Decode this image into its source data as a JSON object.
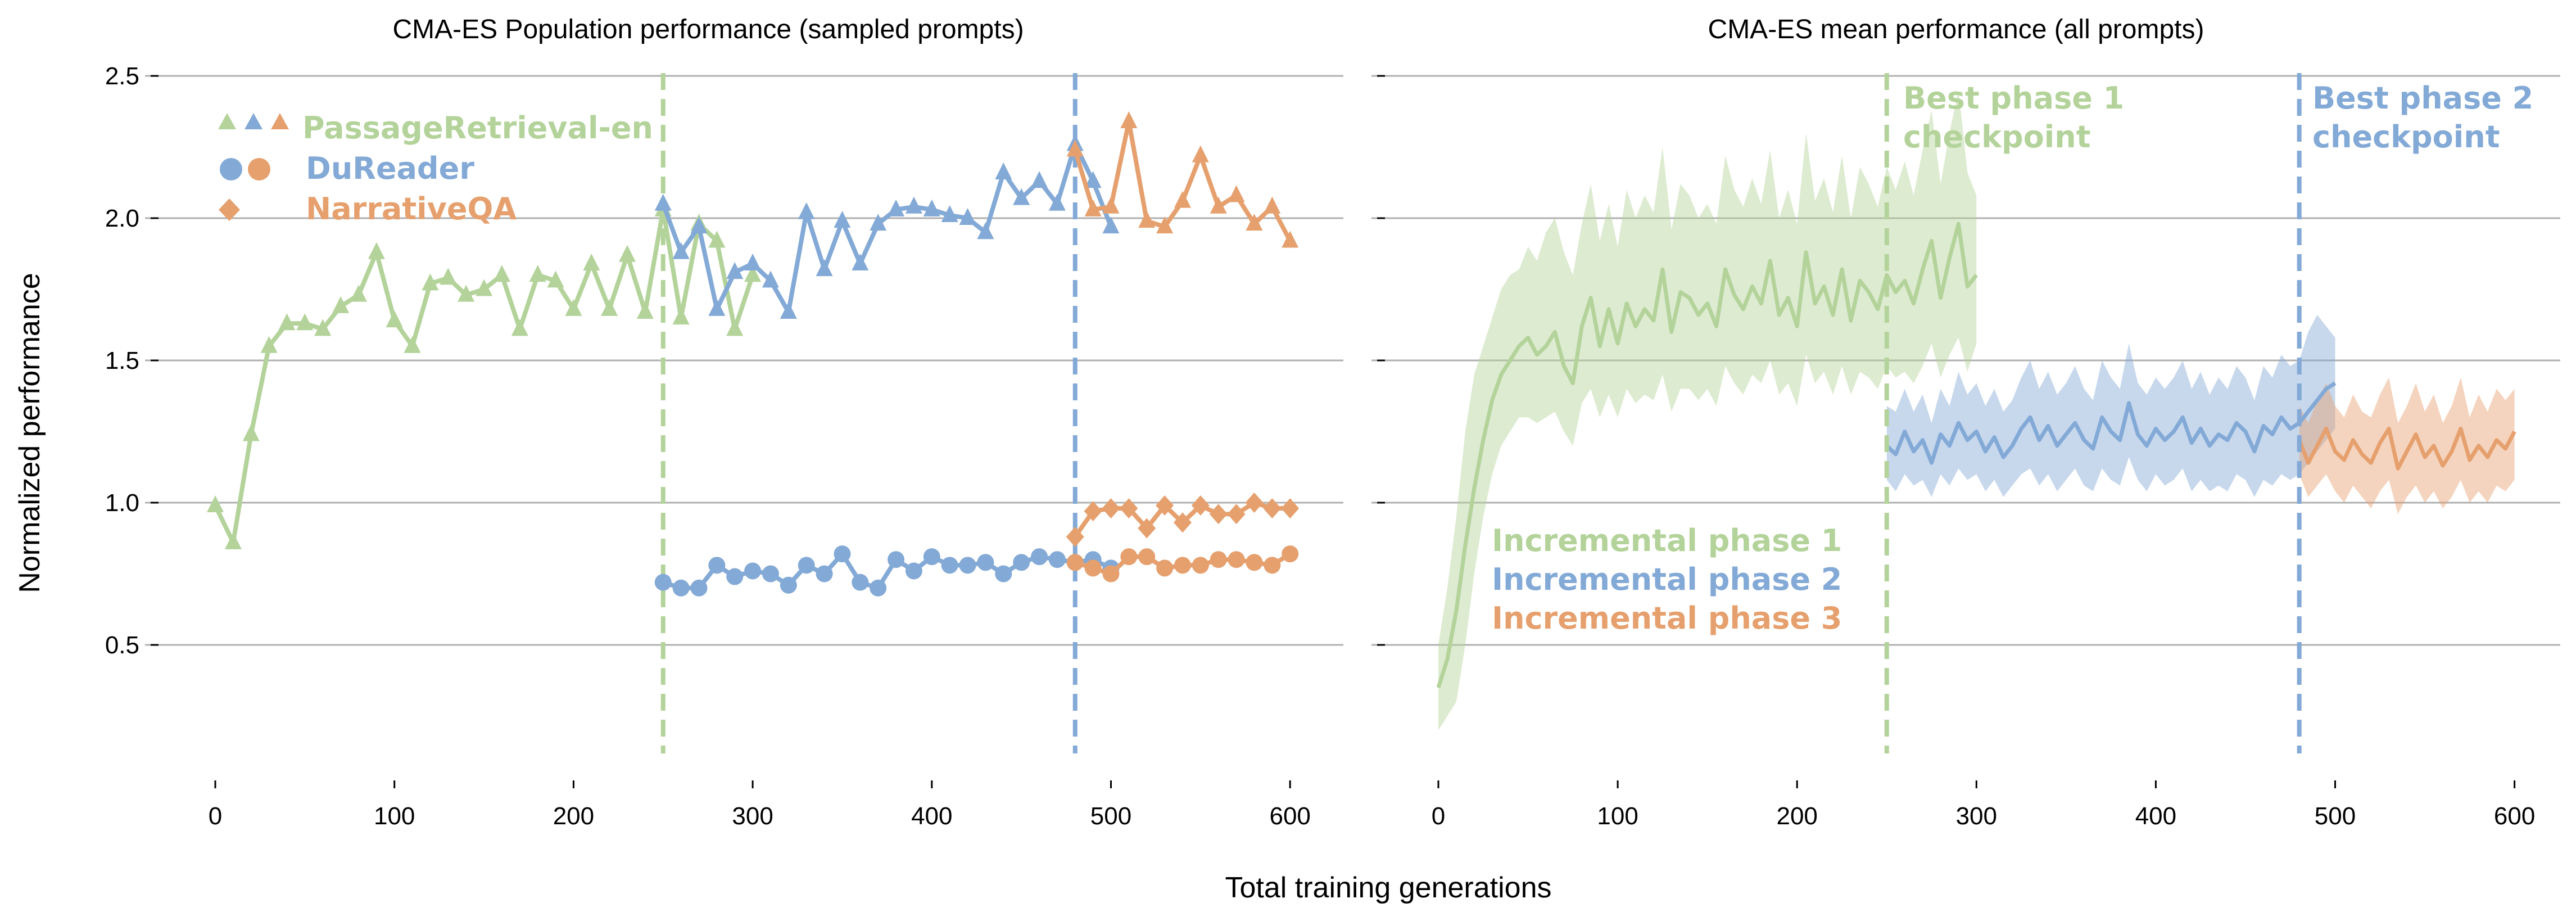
{
  "figure": {
    "xlabel": "Total training generations",
    "ylabel": "Normalized performance"
  },
  "colors": {
    "green": "#b3d39a",
    "blue": "#83a9d6",
    "orange": "#e6a06e",
    "grid": "#b0b0b0"
  },
  "chart_data": [
    {
      "type": "line",
      "title": "CMA-ES Population performance (sampled prompts)",
      "xlabel": "Total training generations",
      "ylabel": "Normalized performance",
      "xlim": [
        -10,
        630
      ],
      "ylim": [
        0.08,
        2.55
      ],
      "xticks": [
        0,
        100,
        200,
        300,
        400,
        500,
        600
      ],
      "yticks": [
        0.5,
        1.0,
        1.5,
        2.0,
        2.5
      ],
      "ytick_labels": [
        "0.5",
        "1.0",
        "1.5",
        "2.0",
        "2.5"
      ],
      "grid": "horizontal",
      "legend_position": "top-left",
      "legend": [
        {
          "label": "PassageRetrieval-en",
          "marker": "triangle",
          "colors": [
            "green",
            "blue",
            "orange"
          ]
        },
        {
          "label": "DuReader",
          "marker": "circle",
          "colors": [
            "blue",
            "orange"
          ]
        },
        {
          "label": "NarrativeQA",
          "marker": "diamond",
          "colors": [
            "orange"
          ]
        }
      ],
      "vlines": [
        {
          "x": 250,
          "color": "green"
        },
        {
          "x": 480,
          "color": "blue"
        }
      ],
      "series": [
        {
          "task": "PassageRetrieval-en",
          "phase": 1,
          "color": "green",
          "marker": "triangle",
          "x": [
            0,
            10,
            20,
            30,
            40,
            50,
            60,
            70,
            80,
            90,
            100,
            110,
            120,
            130,
            140,
            150,
            160,
            170,
            180,
            190,
            200,
            210,
            220,
            230,
            240,
            250,
            260,
            270,
            280,
            290,
            300
          ],
          "y": [
            0.99,
            0.86,
            1.24,
            1.55,
            1.63,
            1.63,
            1.61,
            1.69,
            1.73,
            1.88,
            1.64,
            1.55,
            1.77,
            1.79,
            1.73,
            1.75,
            1.8,
            1.61,
            1.8,
            1.78,
            1.68,
            1.84,
            1.68,
            1.87,
            1.67,
            2.03,
            1.65,
            1.98,
            1.92,
            1.61,
            1.8
          ]
        },
        {
          "task": "PassageRetrieval-en",
          "phase": 2,
          "color": "blue",
          "marker": "triangle",
          "x": [
            250,
            260,
            270,
            280,
            290,
            300,
            310,
            320,
            330,
            340,
            350,
            360,
            370,
            380,
            390,
            400,
            410,
            420,
            430,
            440,
            450,
            460,
            470,
            480,
            490,
            500
          ],
          "y": [
            2.05,
            1.88,
            1.97,
            1.68,
            1.81,
            1.84,
            1.78,
            1.67,
            2.02,
            1.82,
            1.99,
            1.84,
            1.98,
            2.03,
            2.04,
            2.03,
            2.01,
            2.0,
            1.95,
            2.16,
            2.07,
            2.13,
            2.05,
            2.26,
            2.13,
            1.97
          ]
        },
        {
          "task": "PassageRetrieval-en",
          "phase": 3,
          "color": "orange",
          "marker": "triangle",
          "x": [
            480,
            490,
            500,
            510,
            520,
            530,
            540,
            550,
            560,
            570,
            580,
            590,
            600
          ],
          "y": [
            2.24,
            2.03,
            2.04,
            2.34,
            1.99,
            1.97,
            2.06,
            2.22,
            2.04,
            2.08,
            1.98,
            2.04,
            1.92
          ]
        },
        {
          "task": "DuReader",
          "phase": 2,
          "color": "blue",
          "marker": "circle",
          "x": [
            250,
            260,
            270,
            280,
            290,
            300,
            310,
            320,
            330,
            340,
            350,
            360,
            370,
            380,
            390,
            400,
            410,
            420,
            430,
            440,
            450,
            460,
            470,
            480,
            490,
            500
          ],
          "y": [
            0.72,
            0.7,
            0.7,
            0.78,
            0.74,
            0.76,
            0.75,
            0.71,
            0.78,
            0.75,
            0.82,
            0.72,
            0.7,
            0.8,
            0.76,
            0.81,
            0.78,
            0.78,
            0.79,
            0.75,
            0.79,
            0.81,
            0.8,
            0.79,
            0.8,
            0.77
          ]
        },
        {
          "task": "DuReader",
          "phase": 3,
          "color": "orange",
          "marker": "circle",
          "x": [
            480,
            490,
            500,
            510,
            520,
            530,
            540,
            550,
            560,
            570,
            580,
            590,
            600
          ],
          "y": [
            0.79,
            0.77,
            0.75,
            0.81,
            0.81,
            0.77,
            0.78,
            0.78,
            0.8,
            0.8,
            0.79,
            0.78,
            0.82
          ]
        },
        {
          "task": "NarrativeQA",
          "phase": 3,
          "color": "orange",
          "marker": "diamond",
          "x": [
            480,
            490,
            500,
            510,
            520,
            530,
            540,
            550,
            560,
            570,
            580,
            590,
            600
          ],
          "y": [
            0.88,
            0.97,
            0.98,
            0.98,
            0.91,
            0.99,
            0.93,
            0.99,
            0.96,
            0.96,
            1.0,
            0.98,
            0.98
          ]
        }
      ]
    },
    {
      "type": "line",
      "title": "CMA-ES mean performance (all prompts)",
      "xlabel": "Total training generations",
      "xlim": [
        -10,
        630
      ],
      "ylim": [
        0.08,
        2.55
      ],
      "xticks": [
        0,
        100,
        200,
        300,
        400,
        500,
        600
      ],
      "grid": "horizontal",
      "shaded_band": true,
      "vlines": [
        {
          "x": 250,
          "color": "green",
          "label": "Best phase 1 checkpoint"
        },
        {
          "x": 480,
          "color": "blue",
          "label": "Best phase 2 checkpoint"
        }
      ],
      "annotations": [
        {
          "text": "Best phase 1",
          "color": "green"
        },
        {
          "text": "checkpoint",
          "color": "green"
        },
        {
          "text": "Best phase 2",
          "color": "blue"
        },
        {
          "text": "checkpoint",
          "color": "blue"
        }
      ],
      "series_labels": [
        {
          "text": "Incremental phase 1",
          "color": "green"
        },
        {
          "text": "Incremental phase 2",
          "color": "blue"
        },
        {
          "text": "Incremental phase 3",
          "color": "orange"
        }
      ],
      "series": [
        {
          "name": "Incremental phase 1",
          "color": "green",
          "x": [
            0,
            5,
            10,
            15,
            20,
            25,
            30,
            35,
            40,
            45,
            50,
            55,
            60,
            65,
            70,
            75,
            80,
            85,
            90,
            95,
            100,
            105,
            110,
            115,
            120,
            125,
            130,
            135,
            140,
            145,
            150,
            155,
            160,
            165,
            170,
            175,
            180,
            185,
            190,
            195,
            200,
            205,
            210,
            215,
            220,
            225,
            230,
            235,
            240,
            245,
            250,
            255,
            260,
            265,
            270,
            275,
            280,
            285,
            290,
            295,
            300
          ],
          "y": [
            0.35,
            0.45,
            0.62,
            0.85,
            1.05,
            1.22,
            1.36,
            1.45,
            1.5,
            1.55,
            1.58,
            1.52,
            1.55,
            1.6,
            1.48,
            1.42,
            1.62,
            1.72,
            1.55,
            1.68,
            1.56,
            1.7,
            1.62,
            1.68,
            1.64,
            1.82,
            1.6,
            1.74,
            1.72,
            1.66,
            1.7,
            1.62,
            1.82,
            1.73,
            1.68,
            1.76,
            1.7,
            1.85,
            1.66,
            1.72,
            1.62,
            1.88,
            1.7,
            1.76,
            1.66,
            1.82,
            1.64,
            1.78,
            1.74,
            1.68,
            1.8,
            1.74,
            1.78,
            1.7,
            1.82,
            1.92,
            1.72,
            1.86,
            1.98,
            1.76,
            1.8
          ],
          "lower": [
            0.2,
            0.25,
            0.3,
            0.5,
            0.75,
            0.95,
            1.1,
            1.2,
            1.25,
            1.3,
            1.3,
            1.28,
            1.3,
            1.32,
            1.25,
            1.2,
            1.35,
            1.4,
            1.3,
            1.38,
            1.3,
            1.4,
            1.35,
            1.38,
            1.36,
            1.45,
            1.32,
            1.4,
            1.4,
            1.36,
            1.4,
            1.34,
            1.48,
            1.42,
            1.38,
            1.45,
            1.42,
            1.5,
            1.38,
            1.42,
            1.34,
            1.52,
            1.42,
            1.46,
            1.38,
            1.48,
            1.38,
            1.46,
            1.44,
            1.4,
            1.48,
            1.44,
            1.46,
            1.42,
            1.48,
            1.56,
            1.44,
            1.52,
            1.58,
            1.46,
            1.56
          ],
          "upper": [
            0.5,
            0.7,
            0.95,
            1.25,
            1.45,
            1.55,
            1.65,
            1.75,
            1.8,
            1.82,
            1.9,
            1.85,
            1.95,
            2.0,
            1.88,
            1.8,
            1.98,
            2.12,
            1.92,
            2.05,
            1.9,
            2.1,
            2.0,
            2.08,
            2.02,
            2.25,
            1.96,
            2.12,
            2.08,
            2.0,
            2.05,
            1.98,
            2.22,
            2.1,
            2.04,
            2.14,
            2.05,
            2.24,
            2.0,
            2.1,
            1.98,
            2.3,
            2.06,
            2.14,
            2.02,
            2.22,
            2.0,
            2.18,
            2.12,
            2.04,
            2.18,
            2.1,
            2.2,
            2.08,
            2.24,
            2.38,
            2.12,
            2.3,
            2.45,
            2.16,
            2.08
          ]
        },
        {
          "name": "Incremental phase 2",
          "color": "blue",
          "x": [
            250,
            255,
            260,
            265,
            270,
            275,
            280,
            285,
            290,
            295,
            300,
            305,
            310,
            315,
            320,
            325,
            330,
            335,
            340,
            345,
            350,
            355,
            360,
            365,
            370,
            375,
            380,
            385,
            390,
            395,
            400,
            405,
            410,
            415,
            420,
            425,
            430,
            435,
            440,
            445,
            450,
            455,
            460,
            465,
            470,
            475,
            480,
            485,
            490,
            495,
            500
          ],
          "y": [
            1.2,
            1.17,
            1.25,
            1.18,
            1.22,
            1.14,
            1.24,
            1.2,
            1.28,
            1.22,
            1.25,
            1.18,
            1.23,
            1.16,
            1.2,
            1.26,
            1.3,
            1.22,
            1.27,
            1.2,
            1.24,
            1.28,
            1.22,
            1.19,
            1.3,
            1.25,
            1.22,
            1.35,
            1.24,
            1.2,
            1.26,
            1.22,
            1.25,
            1.3,
            1.21,
            1.26,
            1.2,
            1.24,
            1.22,
            1.28,
            1.25,
            1.18,
            1.27,
            1.24,
            1.3,
            1.26,
            1.28,
            1.32,
            1.36,
            1.4,
            1.42
          ],
          "lower": [
            1.08,
            1.04,
            1.1,
            1.06,
            1.08,
            1.02,
            1.1,
            1.06,
            1.12,
            1.08,
            1.1,
            1.04,
            1.08,
            1.02,
            1.06,
            1.1,
            1.12,
            1.06,
            1.1,
            1.04,
            1.08,
            1.12,
            1.06,
            1.04,
            1.12,
            1.08,
            1.06,
            1.16,
            1.08,
            1.04,
            1.1,
            1.06,
            1.08,
            1.12,
            1.04,
            1.08,
            1.04,
            1.06,
            1.04,
            1.1,
            1.08,
            1.02,
            1.08,
            1.06,
            1.1,
            1.08,
            1.1,
            1.14,
            1.18,
            1.22,
            1.26
          ],
          "upper": [
            1.34,
            1.32,
            1.4,
            1.32,
            1.38,
            1.28,
            1.4,
            1.34,
            1.46,
            1.38,
            1.42,
            1.34,
            1.4,
            1.32,
            1.36,
            1.44,
            1.5,
            1.4,
            1.46,
            1.38,
            1.42,
            1.48,
            1.4,
            1.36,
            1.5,
            1.44,
            1.4,
            1.56,
            1.42,
            1.38,
            1.44,
            1.4,
            1.44,
            1.5,
            1.4,
            1.46,
            1.38,
            1.44,
            1.4,
            1.48,
            1.44,
            1.36,
            1.48,
            1.44,
            1.52,
            1.48,
            1.5,
            1.6,
            1.66,
            1.62,
            1.58
          ]
        },
        {
          "name": "Incremental phase 3",
          "color": "orange",
          "x": [
            480,
            485,
            490,
            495,
            500,
            505,
            510,
            515,
            520,
            525,
            530,
            535,
            540,
            545,
            550,
            555,
            560,
            565,
            570,
            575,
            580,
            585,
            590,
            595,
            600
          ],
          "y": [
            1.22,
            1.14,
            1.2,
            1.26,
            1.18,
            1.15,
            1.22,
            1.17,
            1.14,
            1.21,
            1.26,
            1.12,
            1.18,
            1.24,
            1.16,
            1.2,
            1.13,
            1.18,
            1.26,
            1.15,
            1.2,
            1.16,
            1.22,
            1.19,
            1.25
          ],
          "lower": [
            1.1,
            1.02,
            1.06,
            1.1,
            1.04,
            1.0,
            1.06,
            1.02,
            0.98,
            1.04,
            1.08,
            0.96,
            1.02,
            1.06,
            1.0,
            1.04,
            0.98,
            1.02,
            1.08,
            1.0,
            1.04,
            1.0,
            1.06,
            1.04,
            1.08
          ],
          "upper": [
            1.34,
            1.28,
            1.36,
            1.42,
            1.34,
            1.3,
            1.38,
            1.32,
            1.3,
            1.38,
            1.44,
            1.28,
            1.34,
            1.42,
            1.32,
            1.38,
            1.28,
            1.34,
            1.44,
            1.3,
            1.38,
            1.32,
            1.4,
            1.36,
            1.4
          ]
        }
      ]
    }
  ]
}
